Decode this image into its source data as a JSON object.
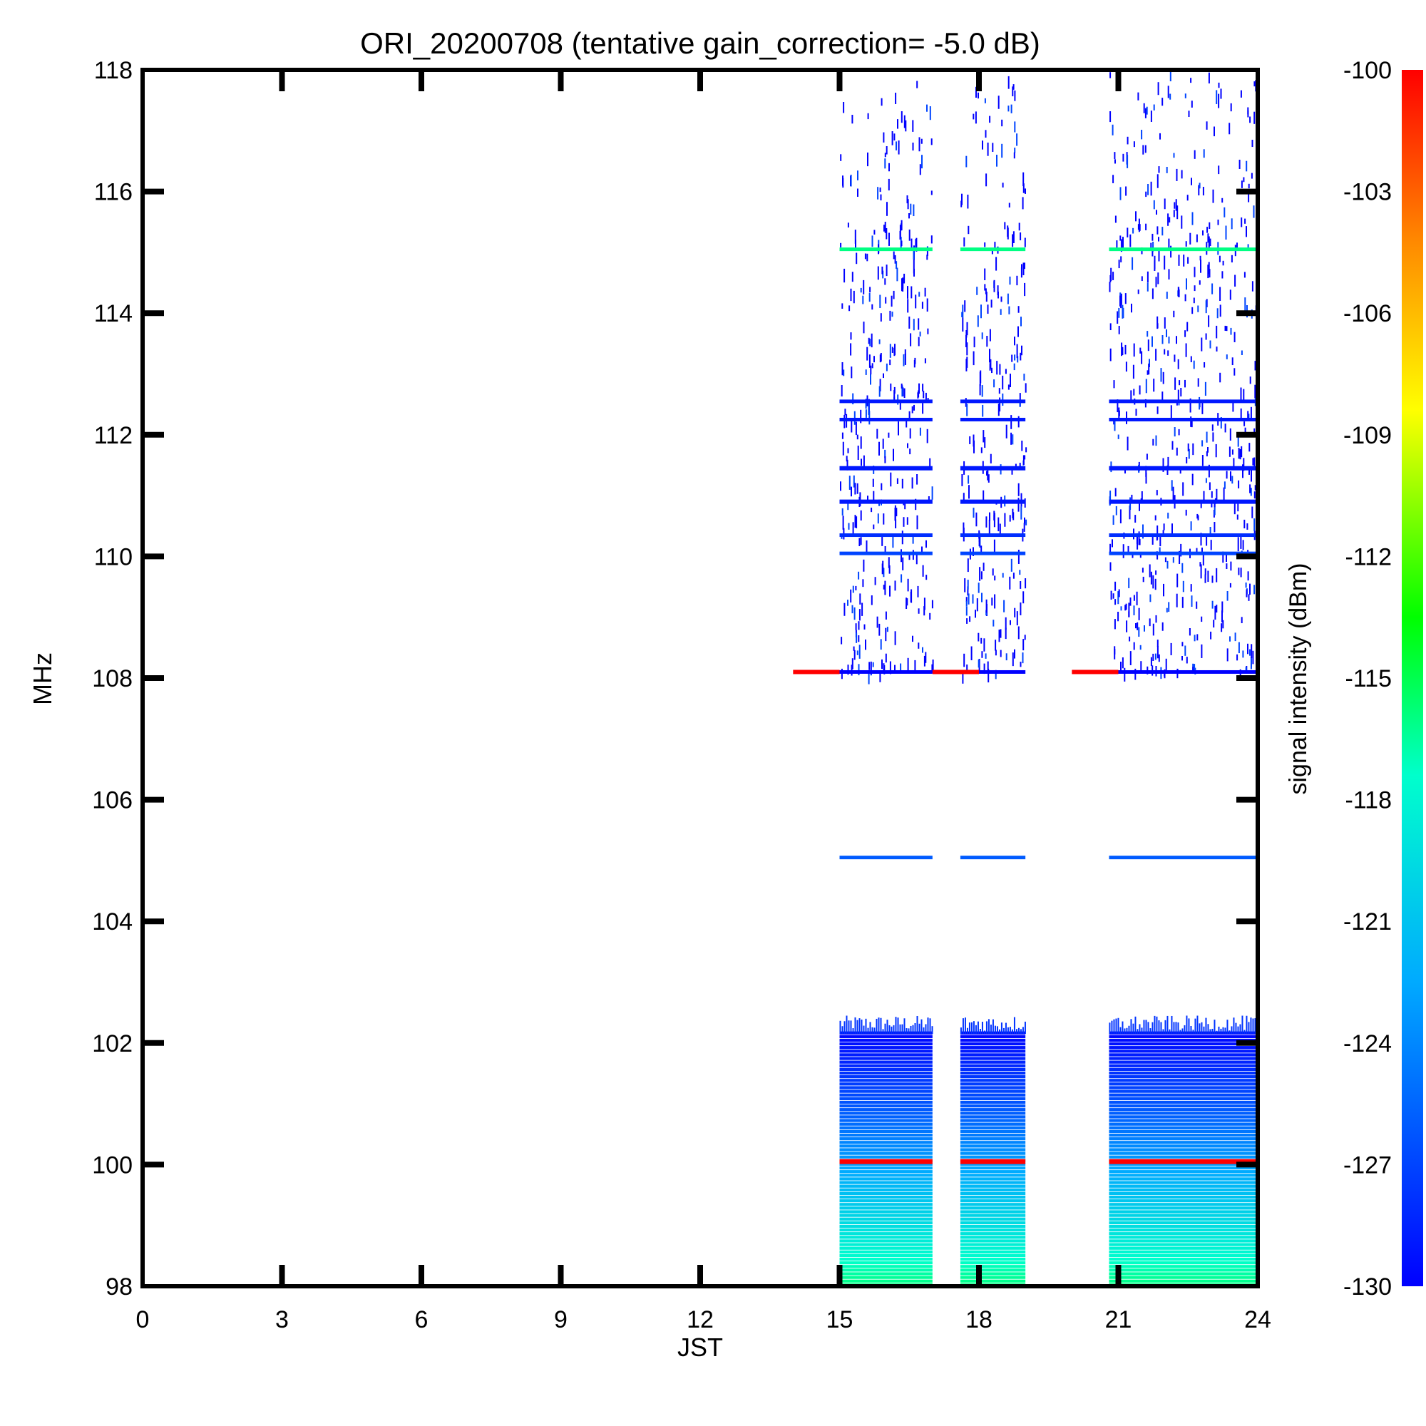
{
  "chart_data": {
    "type": "heatmap",
    "title": "ORI_20200708 (tentative gain_correction= -5.0 dB)",
    "xlabel": "JST",
    "ylabel": "MHz",
    "xlim": [
      0,
      24
    ],
    "ylim": [
      98,
      118
    ],
    "x_ticks": [
      "0",
      "3",
      "6",
      "9",
      "12",
      "15",
      "18",
      "21",
      "24"
    ],
    "y_ticks": [
      "98",
      "100",
      "102",
      "104",
      "106",
      "108",
      "110",
      "112",
      "114",
      "116",
      "118"
    ],
    "colorbar": {
      "label": "signal intensity (dBm)",
      "range": [
        -130,
        -100
      ],
      "ticks": [
        "-130",
        "-127",
        "-124",
        "-121",
        "-118",
        "-115",
        "-112",
        "-109",
        "-106",
        "-103",
        "-100"
      ]
    },
    "observation_segments": [
      {
        "start": 15.0,
        "end": 17.0
      },
      {
        "start": 17.6,
        "end": 19.0
      },
      {
        "start": 20.8,
        "end": 24.0
      }
    ],
    "marker_segments_108MHz": [
      {
        "start": 14.0,
        "end": 15.0
      },
      {
        "start": 17.0,
        "end": 18.0
      },
      {
        "start": 20.0,
        "end": 21.0
      }
    ],
    "bands": [
      {
        "name": "strong line 100 MHz",
        "freq": 100.05,
        "intensity_dbm": -100
      },
      {
        "name": "line 105 MHz",
        "freq": 105.05,
        "intensity_dbm": -126
      },
      {
        "name": "line 110.1 MHz",
        "freq": 110.05,
        "intensity_dbm": -127
      },
      {
        "name": "line 110.4 MHz",
        "freq": 110.35,
        "intensity_dbm": -128
      },
      {
        "name": "line 110.9 MHz",
        "freq": 110.9,
        "intensity_dbm": -129
      },
      {
        "name": "line 111.5 MHz",
        "freq": 111.45,
        "intensity_dbm": -129
      },
      {
        "name": "line 112.3 MHz",
        "freq": 112.25,
        "intensity_dbm": -129
      },
      {
        "name": "line 112.6 MHz",
        "freq": 112.55,
        "intensity_dbm": -129
      },
      {
        "name": "line 115 MHz",
        "freq": 115.05,
        "intensity_dbm": -116
      },
      {
        "name": "line 108.1 MHz",
        "freq": 108.1,
        "intensity_dbm": -130
      }
    ]
  }
}
